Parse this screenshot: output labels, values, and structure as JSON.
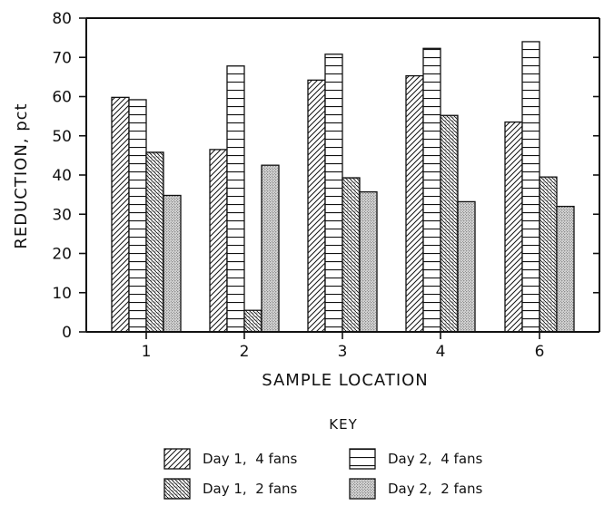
{
  "chart_data": {
    "type": "bar",
    "xlabel": "SAMPLE LOCATION",
    "ylabel": "REDUCTION, pct",
    "categories": [
      "1",
      "2",
      "3",
      "4",
      "6"
    ],
    "ylim": [
      0,
      80
    ],
    "yticks": [
      0,
      10,
      20,
      30,
      40,
      50,
      60,
      70,
      80
    ],
    "grid": false,
    "legend_title": "KEY",
    "legend_position": "bottom",
    "series": [
      {
        "name": "Day 1,  4 fans",
        "pattern": "diagonal-hatch",
        "values": [
          59.8,
          46.5,
          64.2,
          65.3,
          53.5
        ]
      },
      {
        "name": "Day 2,  4 fans",
        "pattern": "horizontal-lines",
        "values": [
          59.2,
          67.8,
          70.8,
          72.3,
          74.0
        ]
      },
      {
        "name": "Day 1,  2 fans",
        "pattern": "dense-diagonal-dotted",
        "values": [
          45.8,
          5.5,
          39.3,
          55.2,
          39.5
        ]
      },
      {
        "name": "Day 2,  2 fans",
        "pattern": "stipple",
        "values": [
          34.8,
          42.5,
          35.7,
          33.2,
          32.0
        ]
      }
    ]
  }
}
